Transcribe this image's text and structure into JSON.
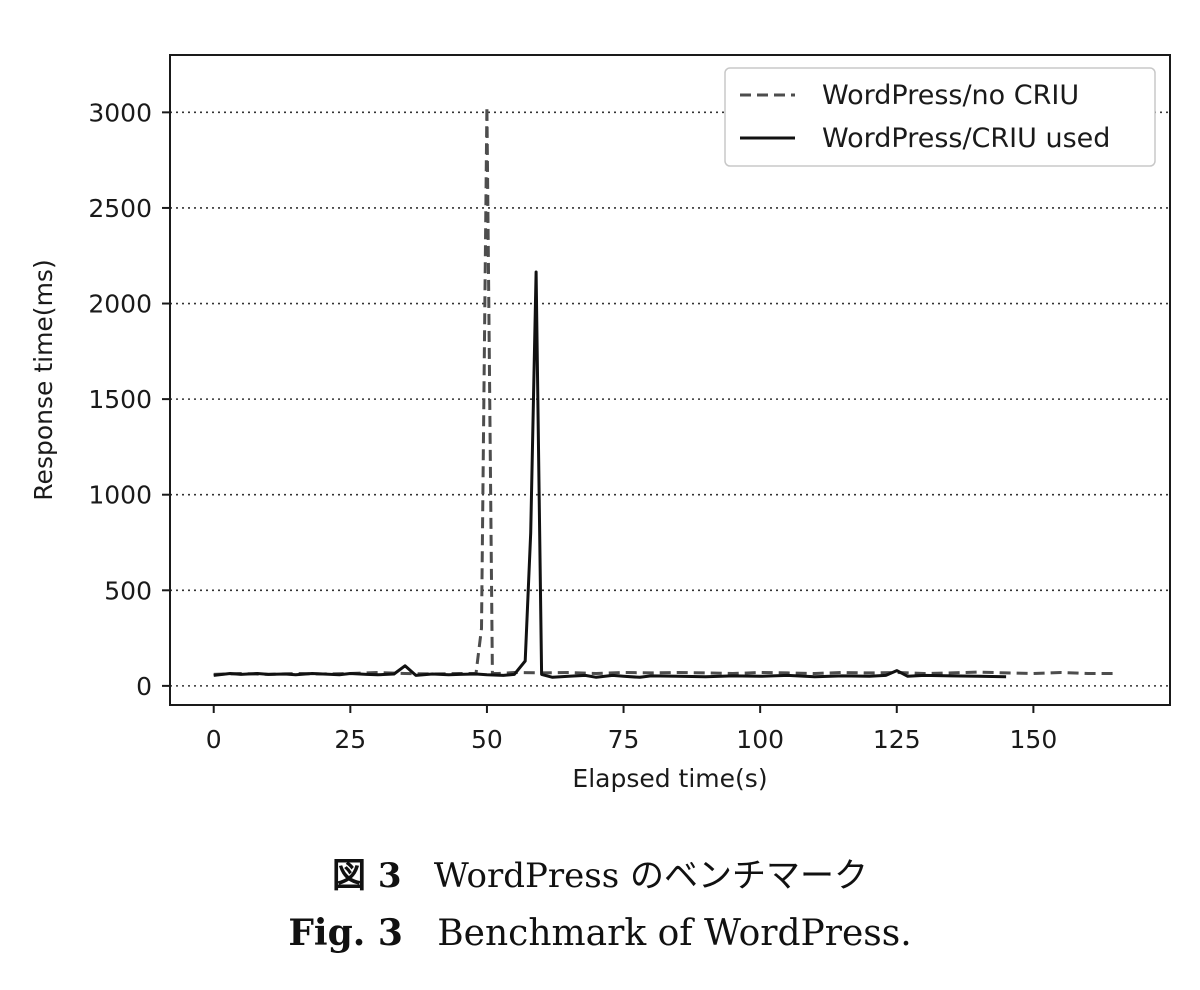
{
  "chart_data": {
    "type": "line",
    "xlabel": "Elapsed time(s)",
    "ylabel": "Response time(ms)",
    "xlim": [
      -8,
      175
    ],
    "ylim": [
      -100,
      3300
    ],
    "xticks": [
      0,
      25,
      50,
      75,
      100,
      125,
      150
    ],
    "yticks": [
      0,
      500,
      1000,
      1500,
      2000,
      2500,
      3000
    ],
    "grid": "horizontal dotted",
    "legend_position": "top-right",
    "series": [
      {
        "name": "WordPress/no CRIU",
        "style": "dashed",
        "color": "#4d4d4d",
        "x": [
          0,
          5,
          10,
          15,
          20,
          25,
          30,
          35,
          40,
          45,
          48,
          49,
          50,
          51,
          52,
          55,
          60,
          65,
          70,
          75,
          80,
          85,
          90,
          95,
          100,
          105,
          110,
          115,
          120,
          125,
          130,
          135,
          140,
          145,
          150,
          155,
          160,
          165
        ],
        "y": [
          60,
          65,
          60,
          65,
          62,
          65,
          70,
          65,
          62,
          65,
          65,
          300,
          3030,
          65,
          65,
          70,
          68,
          70,
          65,
          70,
          68,
          70,
          68,
          65,
          70,
          68,
          65,
          70,
          68,
          70,
          65,
          68,
          72,
          68,
          65,
          70,
          65,
          65
        ]
      },
      {
        "name": "WordPress/CRIU used",
        "style": "solid",
        "color": "#111111",
        "x": [
          0,
          3,
          5,
          8,
          10,
          13,
          15,
          18,
          20,
          23,
          25,
          28,
          30,
          33,
          35,
          37,
          40,
          43,
          45,
          48,
          50,
          53,
          55,
          57,
          58,
          59,
          60,
          62,
          65,
          68,
          70,
          73,
          75,
          78,
          80,
          85,
          90,
          95,
          100,
          105,
          110,
          115,
          120,
          123,
          125,
          127,
          130,
          135,
          140,
          145
        ],
        "y": [
          55,
          65,
          60,
          65,
          60,
          62,
          58,
          65,
          62,
          58,
          65,
          60,
          58,
          62,
          105,
          55,
          62,
          58,
          60,
          62,
          58,
          55,
          60,
          130,
          800,
          2165,
          60,
          45,
          50,
          55,
          45,
          55,
          50,
          45,
          52,
          50,
          48,
          52,
          50,
          55,
          48,
          52,
          50,
          55,
          80,
          50,
          55,
          52,
          50,
          48
        ]
      }
    ]
  },
  "caption": {
    "jp_fig_num": "図 3",
    "jp_text": "WordPress のベンチマーク",
    "en_fig_num": "Fig. 3",
    "en_text": "Benchmark of WordPress."
  }
}
